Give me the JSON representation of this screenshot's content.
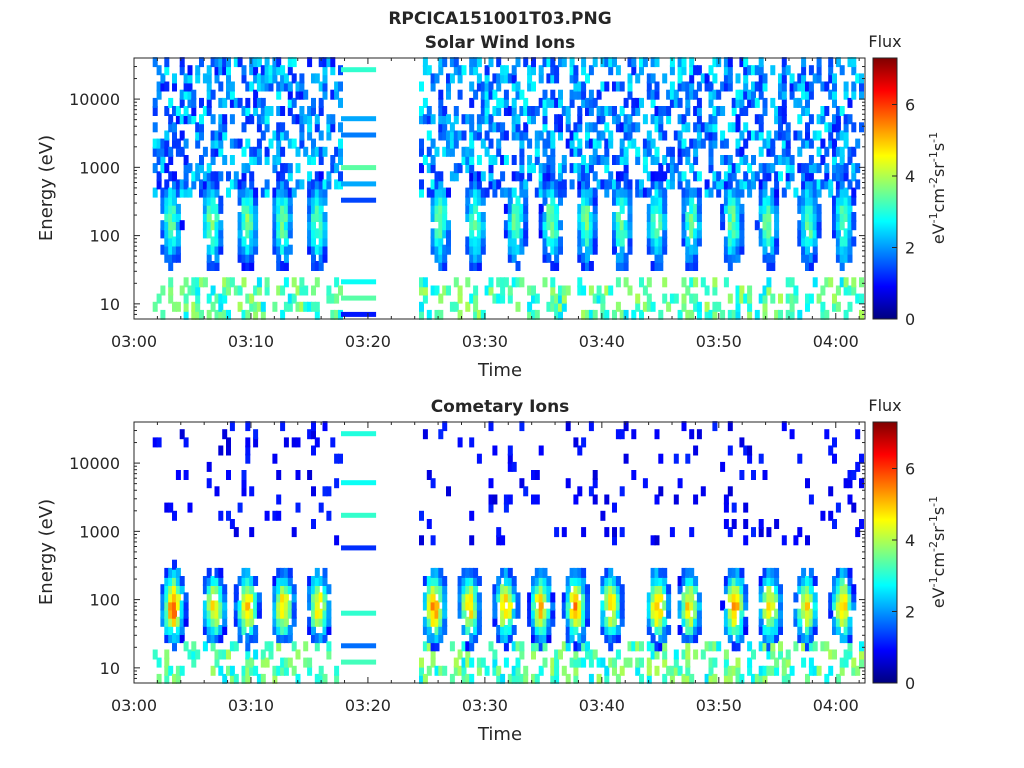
{
  "figure_title": "RPCICA151001T03.PNG",
  "chart_data": [
    {
      "type": "heatmap",
      "title": "Solar Wind Ions",
      "xlabel": "Time",
      "ylabel": "Energy (eV)",
      "x_ticks": [
        "03:00",
        "03:10",
        "03:20",
        "03:30",
        "03:40",
        "03:50",
        "04:00"
      ],
      "x_range_minutes": [
        0,
        62.5
      ],
      "y_scale": "log",
      "y_ticks": [
        "10",
        "100",
        "1000",
        "10000"
      ],
      "y_range": [
        6,
        40000
      ],
      "data_gap_minutes": [
        17.5,
        24.3
      ],
      "colorbar": {
        "title": "Flux",
        "label": "eV-1cm-2sr-1s-1",
        "ticks": [
          "0",
          "2",
          "4",
          "6"
        ],
        "range": [
          0,
          7.3
        ]
      },
      "bursts": [
        {
          "t": 3.0,
          "level": 3.4
        },
        {
          "t": 6.5,
          "level": 3.6
        },
        {
          "t": 9.5,
          "level": 3.6
        },
        {
          "t": 12.5,
          "level": 3.5
        },
        {
          "t": 15.5,
          "level": 3.5
        },
        {
          "t": 26.0,
          "level": 3.4
        },
        {
          "t": 29.0,
          "level": 3.5
        },
        {
          "t": 32.5,
          "level": 3.5
        },
        {
          "t": 35.5,
          "level": 3.6
        },
        {
          "t": 38.5,
          "level": 3.5
        },
        {
          "t": 41.5,
          "level": 3.5
        },
        {
          "t": 44.5,
          "level": 3.5
        },
        {
          "t": 47.5,
          "level": 3.4
        },
        {
          "t": 51.0,
          "level": 3.5
        },
        {
          "t": 54.0,
          "level": 3.5
        },
        {
          "t": 57.5,
          "level": 3.5
        },
        {
          "t": 60.5,
          "level": 3.5
        }
      ]
    },
    {
      "type": "heatmap",
      "title": "Cometary Ions",
      "xlabel": "Time",
      "ylabel": "Energy (eV)",
      "x_ticks": [
        "03:00",
        "03:10",
        "03:20",
        "03:30",
        "03:40",
        "03:50",
        "04:00"
      ],
      "x_range_minutes": [
        0,
        62.5
      ],
      "y_scale": "log",
      "y_ticks": [
        "10",
        "100",
        "1000",
        "10000"
      ],
      "y_range": [
        6,
        40000
      ],
      "data_gap_minutes": [
        17.5,
        24.3
      ],
      "colorbar": {
        "title": "Flux",
        "label": "eV-1cm-2sr-1s-1",
        "ticks": [
          "0",
          "2",
          "4",
          "6"
        ],
        "range": [
          0,
          7.3
        ]
      },
      "bursts": [
        {
          "t": 3.2,
          "level": 5.6
        },
        {
          "t": 6.7,
          "level": 4.7
        },
        {
          "t": 9.5,
          "level": 5.1
        },
        {
          "t": 12.6,
          "level": 4.8
        },
        {
          "t": 15.6,
          "level": 4.8
        },
        {
          "t": 25.5,
          "level": 5.4
        },
        {
          "t": 28.5,
          "level": 5.0
        },
        {
          "t": 31.6,
          "level": 4.9
        },
        {
          "t": 34.6,
          "level": 5.0
        },
        {
          "t": 37.6,
          "level": 5.3
        },
        {
          "t": 40.6,
          "level": 4.9
        },
        {
          "t": 44.6,
          "level": 5.2
        },
        {
          "t": 47.3,
          "level": 4.8
        },
        {
          "t": 51.2,
          "level": 5.3
        },
        {
          "t": 54.2,
          "level": 4.9
        },
        {
          "t": 57.3,
          "level": 4.8
        },
        {
          "t": 60.4,
          "level": 5.1
        }
      ]
    }
  ]
}
